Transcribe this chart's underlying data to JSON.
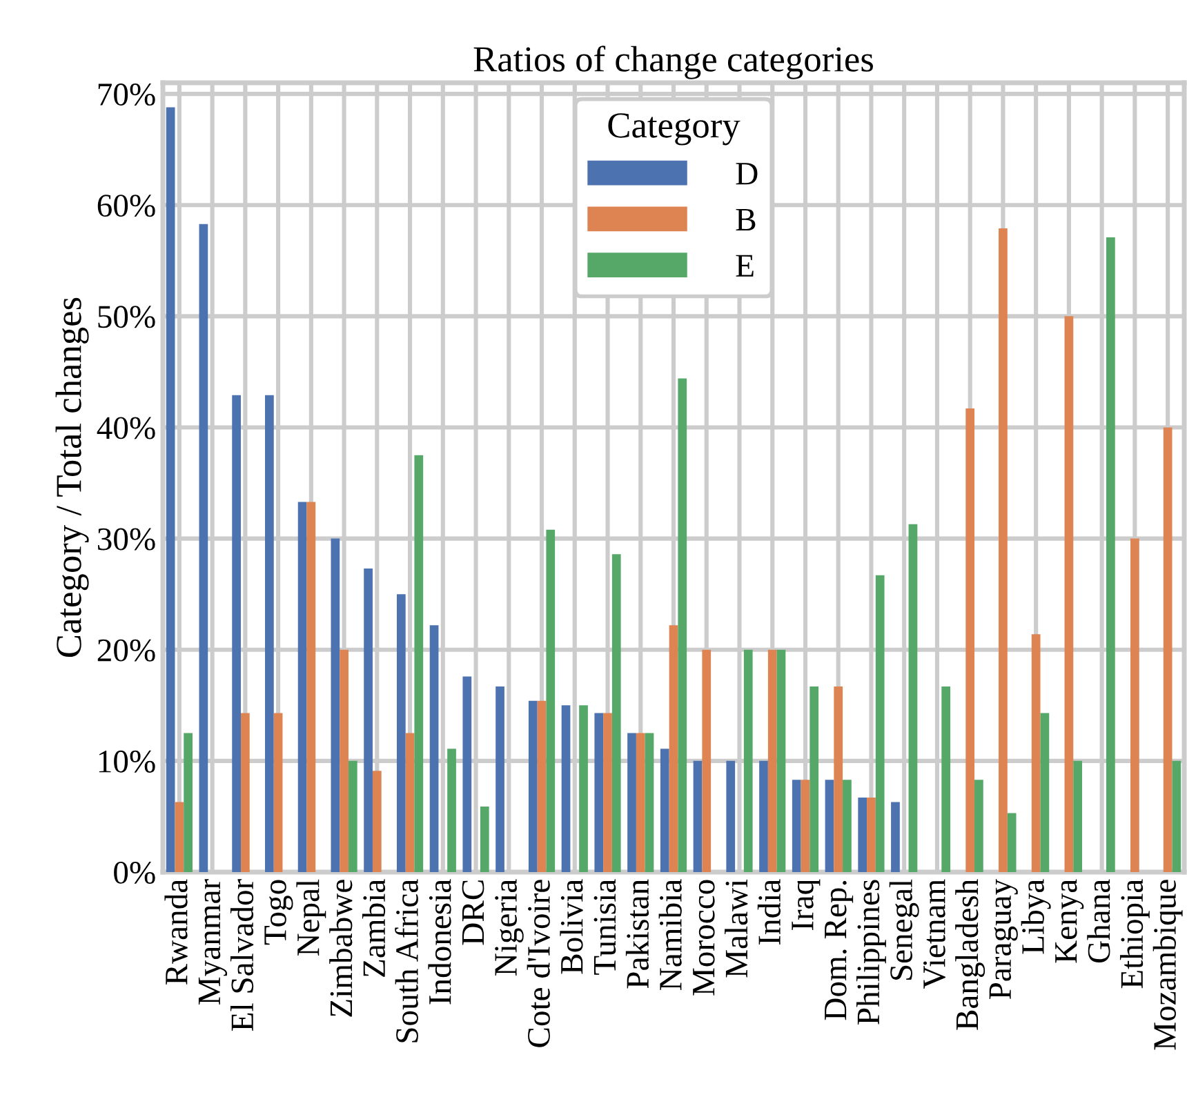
{
  "chart_data": {
    "type": "bar",
    "title": "Ratios of change categories",
    "ylabel": "Category / Total changes",
    "legend_title": "Category",
    "categories": [
      "Rwanda",
      "Myanmar",
      "El Salvador",
      "Togo",
      "Nepal",
      "Zimbabwe",
      "Zambia",
      "South Africa",
      "Indonesia",
      "DRC",
      "Nigeria",
      "Cote d'Ivoire",
      "Bolivia",
      "Tunisia",
      "Pakistan",
      "Namibia",
      "Morocco",
      "Malawi",
      "India",
      "Iraq",
      "Dom. Rep.",
      "Philippines",
      "Senegal",
      "Vietnam",
      "Bangladesh",
      "Paraguay",
      "Libya",
      "Kenya",
      "Ghana",
      "Ethiopia",
      "Mozambique"
    ],
    "series": [
      {
        "name": "D",
        "color": "#4c72b0",
        "values": [
          68.8,
          58.3,
          42.9,
          42.9,
          33.3,
          30,
          27.3,
          25,
          22.2,
          17.6,
          16.7,
          15.4,
          15,
          14.3,
          12.5,
          11.1,
          10,
          10,
          10,
          8.3,
          8.3,
          6.7,
          6.3,
          null,
          null,
          null,
          null,
          null,
          null,
          null,
          null
        ]
      },
      {
        "name": "B",
        "color": "#dd8452",
        "values": [
          6.3,
          null,
          14.3,
          14.3,
          33.3,
          20,
          9.1,
          12.5,
          null,
          null,
          null,
          15.4,
          null,
          14.3,
          12.5,
          22.2,
          20,
          null,
          20,
          8.3,
          16.7,
          6.7,
          null,
          null,
          41.7,
          57.9,
          21.4,
          50,
          null,
          30,
          40
        ]
      },
      {
        "name": "E",
        "color": "#55a868",
        "values": [
          12.5,
          null,
          null,
          null,
          null,
          10,
          null,
          37.5,
          11.1,
          5.9,
          null,
          30.8,
          15,
          28.6,
          12.5,
          44.4,
          null,
          20,
          20,
          16.7,
          8.3,
          26.7,
          31.3,
          16.7,
          8.3,
          5.3,
          14.3,
          10,
          57.1,
          null,
          10
        ]
      }
    ],
    "ylim": [
      0,
      71
    ],
    "yticks": [
      {
        "value": 0,
        "label": "0%"
      },
      {
        "value": 10,
        "label": "10%"
      },
      {
        "value": 20,
        "label": "20%"
      },
      {
        "value": 30,
        "label": "30%"
      },
      {
        "value": 40,
        "label": "40%"
      },
      {
        "value": 50,
        "label": "50%"
      },
      {
        "value": 60,
        "label": "60%"
      },
      {
        "value": 70,
        "label": "70%"
      }
    ],
    "grid": true,
    "legend": "top center"
  }
}
